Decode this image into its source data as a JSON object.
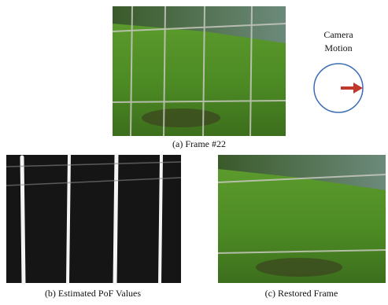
{
  "figure": {
    "panel_a": {
      "caption": "(a)  Frame #22"
    },
    "annotation": {
      "line1": "Camera",
      "line2": "Motion"
    },
    "panel_b": {
      "caption": "(b) Estimated PoF Values"
    },
    "panel_c": {
      "caption": "(c) Restored Frame"
    }
  }
}
